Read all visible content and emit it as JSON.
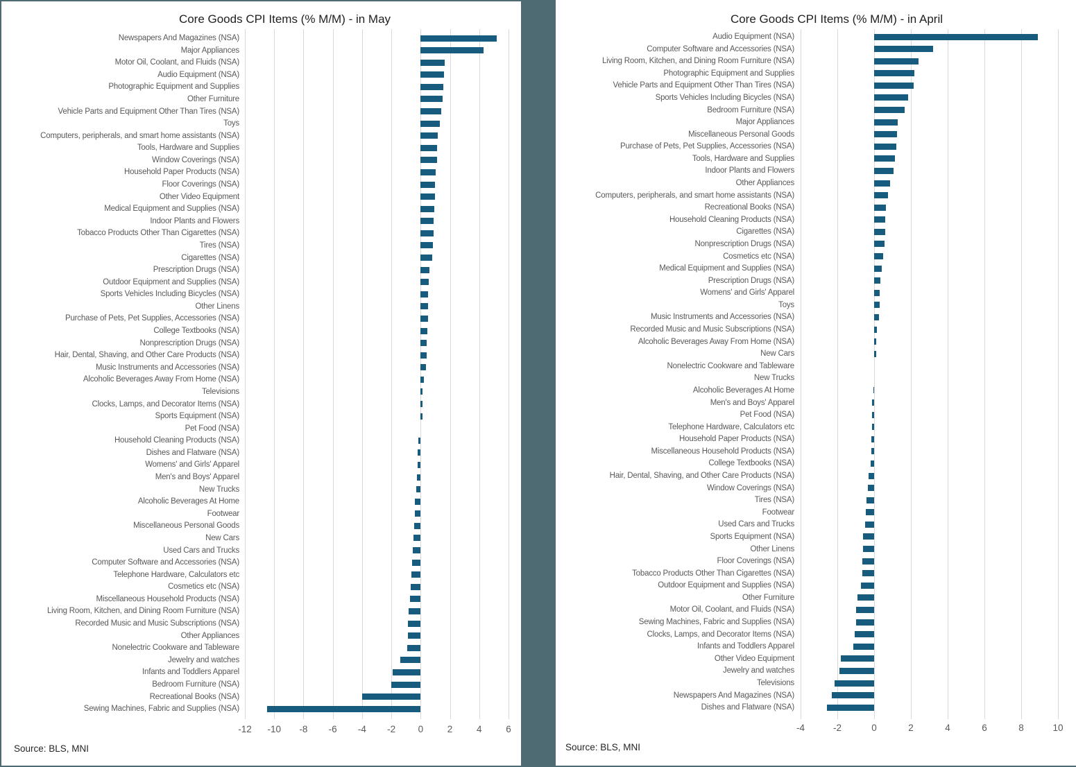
{
  "page": {
    "background": "#ffffff",
    "divider_color": "#4E6A73",
    "bar_color": "#175B7E",
    "gridline_color": "#D9D9D9"
  },
  "chart_data": [
    {
      "type": "bar",
      "orientation": "horizontal",
      "title": "Core Goods CPI Items (% M/M) - in May",
      "source": "Source: BLS, MNI",
      "xlim": [
        -12,
        6
      ],
      "ticks": [
        -12,
        -10,
        -8,
        -6,
        -4,
        -2,
        0,
        2,
        4,
        6
      ],
      "grid": "vertical",
      "legend": "none",
      "categories": [
        "Newspapers And Magazines (NSA)",
        "Major Appliances",
        "Motor Oil, Coolant, and Fluids (NSA)",
        "Audio Equipment (NSA)",
        "Photographic Equipment and Supplies",
        "Other Furniture",
        "Vehicle Parts and Equipment Other Than Tires (NSA)",
        "Toys",
        "Computers, peripherals, and smart home assistants (NSA)",
        "Tools, Hardware and Supplies",
        "Window Coverings (NSA)",
        "Household Paper Products (NSA)",
        "Floor Coverings (NSA)",
        "Other Video Equipment",
        "Medical Equipment and Supplies (NSA)",
        "Indoor Plants and Flowers",
        "Tobacco Products Other Than Cigarettes (NSA)",
        "Tires (NSA)",
        "Cigarettes (NSA)",
        "Prescription Drugs (NSA)",
        "Outdoor Equipment and Supplies (NSA)",
        "Sports Vehicles Including Bicycles (NSA)",
        "Other Linens",
        "Purchase of Pets, Pet Supplies, Accessories (NSA)",
        "College Textbooks (NSA)",
        "Nonprescription Drugs (NSA)",
        "Hair, Dental, Shaving, and Other Care Products (NSA)",
        "Music Instruments and Accessories (NSA)",
        "Alcoholic Beverages Away From Home (NSA)",
        "Televisions",
        "Clocks, Lamps, and Decorator Items (NSA)",
        "Sports Equipment (NSA)",
        "Pet Food (NSA)",
        "Household Cleaning Products (NSA)",
        "Dishes and Flatware (NSA)",
        "Womens' and Girls' Apparel",
        "Men's and Boys' Apparel",
        "New Trucks",
        "Alcoholic Beverages At Home",
        "Footwear",
        "Miscellaneous Personal Goods",
        "New Cars",
        "Used Cars and Trucks",
        "Computer Software and Accessories (NSA)",
        "Telephone Hardware, Calculators etc",
        "Cosmetics etc (NSA)",
        "Miscellaneous Household Products (NSA)",
        "Living Room, Kitchen, and Dining Room Furniture (NSA)",
        "Recorded Music and Music Subscriptions (NSA)",
        "Other Appliances",
        "Nonelectric Cookware and Tableware",
        "Jewelry and watches",
        "Infants and Toddlers Apparel",
        "Bedroom Furniture (NSA)",
        "Recreational Books (NSA)",
        "Sewing Machines, Fabric and Supplies (NSA)"
      ],
      "values": [
        5.2,
        4.3,
        1.65,
        1.6,
        1.55,
        1.5,
        1.4,
        1.3,
        1.15,
        1.1,
        1.1,
        1.05,
        1.0,
        1.0,
        0.95,
        0.9,
        0.9,
        0.85,
        0.8,
        0.6,
        0.55,
        0.5,
        0.5,
        0.5,
        0.45,
        0.4,
        0.4,
        0.35,
        0.2,
        0.15,
        0.15,
        0.15,
        0.0,
        -0.15,
        -0.2,
        -0.2,
        -0.25,
        -0.3,
        -0.4,
        -0.4,
        -0.45,
        -0.5,
        -0.55,
        -0.6,
        -0.65,
        -0.7,
        -0.75,
        -0.8,
        -0.85,
        -0.85,
        -0.9,
        -1.4,
        -1.9,
        -2.0,
        -4.0,
        -10.5
      ]
    },
    {
      "type": "bar",
      "orientation": "horizontal",
      "title": "Core Goods CPI Items (% M/M) - in April",
      "source": "Source: BLS, MNI",
      "xlim": [
        -4,
        10
      ],
      "ticks": [
        -4,
        -2,
        0,
        2,
        4,
        6,
        8,
        10
      ],
      "grid": "vertical",
      "legend": "none",
      "categories": [
        "Audio Equipment (NSA)",
        "Computer Software and Accessories (NSA)",
        "Living Room, Kitchen, and Dining Room Furniture (NSA)",
        "Photographic Equipment and Supplies",
        "Vehicle Parts and Equipment Other Than Tires (NSA)",
        "Sports Vehicles Including Bicycles (NSA)",
        "Bedroom Furniture (NSA)",
        "Major Appliances",
        "Miscellaneous Personal Goods",
        "Purchase of Pets, Pet Supplies, Accessories (NSA)",
        "Tools, Hardware and Supplies",
        "Indoor Plants and Flowers",
        "Other Appliances",
        "Computers, peripherals, and smart home assistants (NSA)",
        "Recreational Books (NSA)",
        "Household Cleaning Products (NSA)",
        "Cigarettes (NSA)",
        "Nonprescription Drugs (NSA)",
        "Cosmetics etc (NSA)",
        "Medical Equipment and Supplies (NSA)",
        "Prescription Drugs (NSA)",
        "Womens' and Girls' Apparel",
        "Toys",
        "Music Instruments and Accessories (NSA)",
        "Recorded Music and Music Subscriptions (NSA)",
        "Alcoholic Beverages Away From Home (NSA)",
        "New Cars",
        "Nonelectric Cookware and Tableware",
        "New Trucks",
        "Alcoholic Beverages At Home",
        "Men's and Boys' Apparel",
        "Pet Food (NSA)",
        "Telephone Hardware, Calculators etc",
        "Household Paper Products (NSA)",
        "Miscellaneous Household Products (NSA)",
        "College Textbooks (NSA)",
        "Hair, Dental, Shaving, and Other Care Products (NSA)",
        "Window Coverings (NSA)",
        "Tires (NSA)",
        "Footwear",
        "Used Cars and Trucks",
        "Sports Equipment (NSA)",
        "Other Linens",
        "Floor Coverings (NSA)",
        "Tobacco Products Other Than Cigarettes (NSA)",
        "Outdoor Equipment and Supplies (NSA)",
        "Other Furniture",
        "Motor Oil, Coolant, and Fluids (NSA)",
        "Sewing Machines, Fabric and Supplies (NSA)",
        "Clocks, Lamps, and Decorator Items (NSA)",
        "Infants and Toddlers Apparel",
        "Other Video Equipment",
        "Jewelry and watches",
        "Televisions",
        "Newspapers And Magazines (NSA)",
        "Dishes and Flatware (NSA)"
      ],
      "values": [
        8.9,
        3.2,
        2.4,
        2.2,
        2.15,
        1.85,
        1.65,
        1.3,
        1.25,
        1.2,
        1.15,
        1.05,
        0.85,
        0.75,
        0.65,
        0.6,
        0.6,
        0.55,
        0.5,
        0.4,
        0.35,
        0.3,
        0.3,
        0.25,
        0.15,
        0.1,
        0.1,
        0.0,
        0.0,
        -0.05,
        -0.1,
        -0.1,
        -0.1,
        -0.15,
        -0.15,
        -0.2,
        -0.3,
        -0.35,
        -0.4,
        -0.45,
        -0.5,
        -0.6,
        -0.6,
        -0.65,
        -0.65,
        -0.7,
        -0.9,
        -1.0,
        -1.0,
        -1.05,
        -1.15,
        -1.8,
        -1.9,
        -2.15,
        -2.3,
        -2.55
      ]
    }
  ]
}
